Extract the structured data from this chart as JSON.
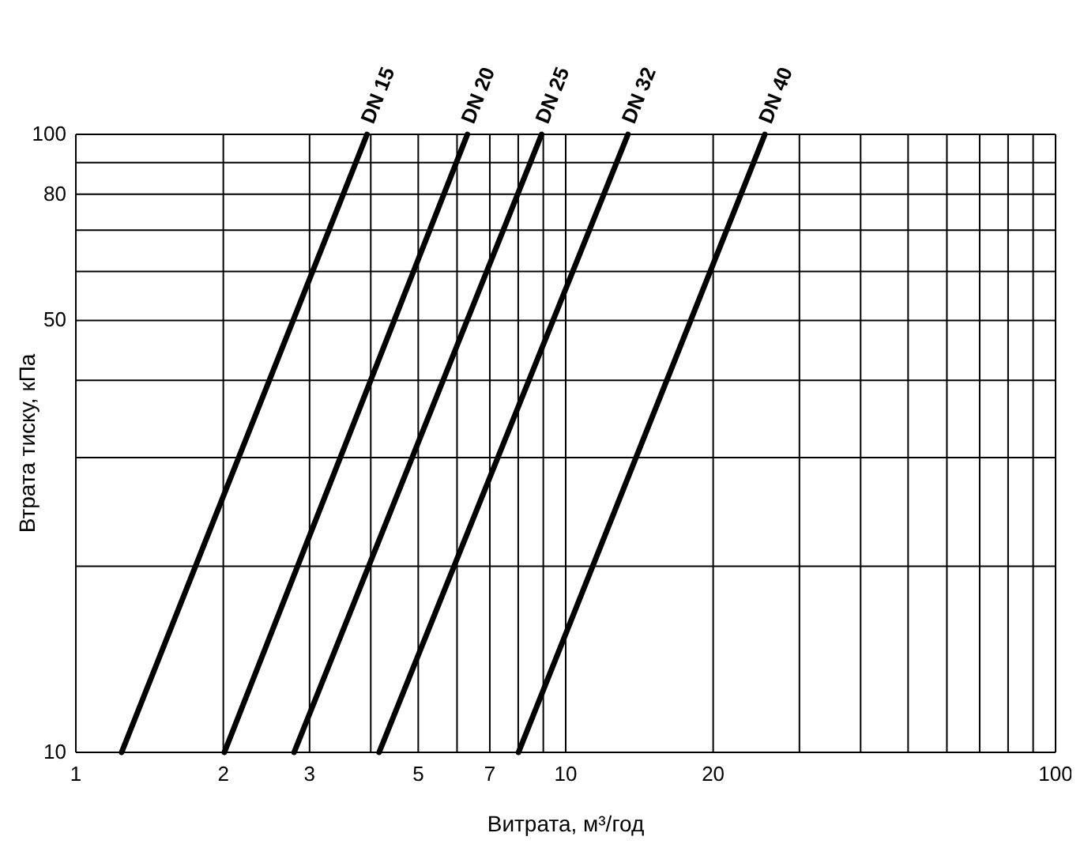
{
  "chart_data": {
    "type": "line",
    "xlabel": "Витрата, м³/год",
    "ylabel": "Втрата тиску, кПа",
    "log": "xy",
    "grid": true,
    "marker": "none",
    "line_style": "solid",
    "xlim": [
      1,
      100
    ],
    "ylim": [
      10,
      100
    ],
    "xticks": [
      1,
      2,
      3,
      {
        "value": 4,
        "label": null
      },
      5,
      {
        "value": 6,
        "label": null
      },
      7,
      {
        "value": 8,
        "label": null
      },
      {
        "value": 9,
        "label": null
      },
      10,
      20,
      {
        "value": 30,
        "label": null
      },
      {
        "value": 40,
        "label": null
      },
      {
        "value": 50,
        "label": null
      },
      {
        "value": 60,
        "label": null
      },
      {
        "value": 70,
        "label": null
      },
      {
        "value": 80,
        "label": null
      },
      {
        "value": 90,
        "label": null
      },
      100
    ],
    "yticks": [
      10,
      {
        "value": 20,
        "label": null
      },
      {
        "value": 30,
        "label": null
      },
      {
        "value": 40,
        "label": null
      },
      50,
      {
        "value": 60,
        "label": null
      },
      {
        "value": 70,
        "label": null
      },
      80,
      {
        "value": 90,
        "label": null
      },
      100
    ],
    "series": [
      {
        "name": "DN 15",
        "color": "#000000",
        "x": [
          1.24,
          3.93
        ],
        "values": [
          10,
          100
        ]
      },
      {
        "name": "DN 20",
        "color": "#000000",
        "x": [
          2.01,
          6.3
        ],
        "values": [
          10,
          100
        ]
      },
      {
        "name": "DN 25",
        "color": "#000000",
        "x": [
          2.79,
          8.93
        ],
        "values": [
          10,
          100
        ]
      },
      {
        "name": "DN 32",
        "color": "#000000",
        "x": [
          4.16,
          13.4
        ],
        "values": [
          10,
          100
        ]
      },
      {
        "name": "DN 40",
        "color": "#000000",
        "x": [
          8.01,
          25.5
        ],
        "values": [
          10,
          100
        ]
      }
    ]
  }
}
